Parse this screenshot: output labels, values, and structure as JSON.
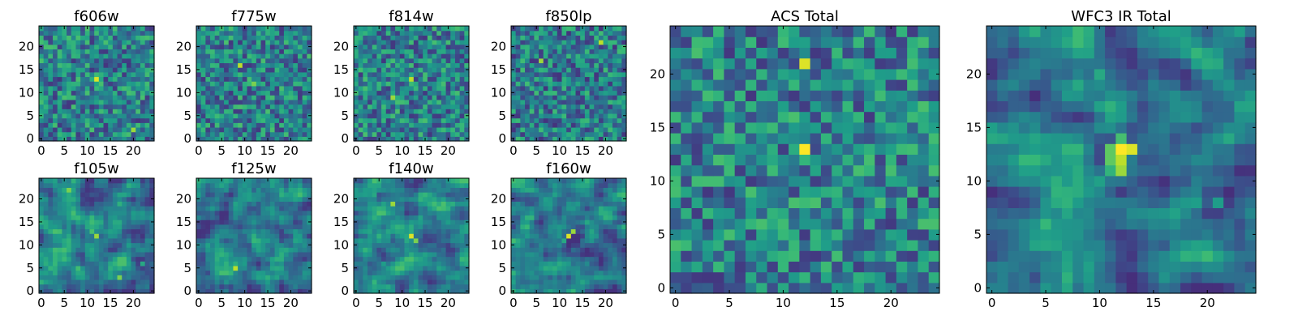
{
  "chart_data": [
    {
      "type": "heatmap",
      "title": "f606w",
      "grid_size": 25,
      "xticks": [
        0,
        5,
        10,
        15,
        20
      ],
      "yticks": [
        0,
        5,
        10,
        15,
        20
      ],
      "colormap": "viridis",
      "peaks": [
        [
          12,
          13,
          0.95
        ],
        [
          13,
          12,
          0.7
        ],
        [
          20,
          2,
          0.85
        ],
        [
          19,
          1,
          0.7
        ],
        [
          1,
          17,
          0.55
        ],
        [
          7,
          11,
          0.55
        ]
      ],
      "smooth": false,
      "bg": 0.45,
      "seed": 11
    },
    {
      "type": "heatmap",
      "title": "f775w",
      "grid_size": 25,
      "xticks": [
        0,
        5,
        10,
        15,
        20
      ],
      "yticks": [
        0,
        5,
        10,
        15,
        20
      ],
      "colormap": "viridis",
      "peaks": [
        [
          12,
          12,
          0.8
        ],
        [
          11,
          13,
          0.7
        ],
        [
          9,
          16,
          0.9
        ],
        [
          18,
          3,
          0.55
        ],
        [
          3,
          1,
          0.5
        ]
      ],
      "smooth": false,
      "bg": 0.45,
      "seed": 23
    },
    {
      "type": "heatmap",
      "title": "f814w",
      "grid_size": 25,
      "xticks": [
        0,
        5,
        10,
        15,
        20
      ],
      "yticks": [
        0,
        5,
        10,
        15,
        20
      ],
      "colormap": "viridis",
      "peaks": [
        [
          12,
          13,
          0.9
        ],
        [
          8,
          9,
          0.85
        ],
        [
          13,
          12,
          0.6
        ],
        [
          17,
          11,
          0.5
        ]
      ],
      "smooth": false,
      "bg": 0.45,
      "seed": 37
    },
    {
      "type": "heatmap",
      "title": "f850lp",
      "grid_size": 25,
      "xticks": [
        0,
        5,
        10,
        15,
        20
      ],
      "yticks": [
        0,
        5,
        10,
        15,
        20
      ],
      "colormap": "viridis",
      "peaks": [
        [
          19,
          21,
          0.9
        ],
        [
          6,
          17,
          0.85
        ],
        [
          12,
          13,
          0.55
        ],
        [
          3,
          5,
          0.5
        ]
      ],
      "smooth": false,
      "bg": 0.4,
      "seed": 41
    },
    {
      "type": "heatmap",
      "title": "f105w",
      "grid_size": 25,
      "xticks": [
        0,
        5,
        10,
        15,
        20
      ],
      "yticks": [
        0,
        5,
        10,
        15,
        20
      ],
      "colormap": "viridis",
      "peaks": [
        [
          12,
          12,
          0.85
        ],
        [
          11,
          13,
          0.7
        ],
        [
          6,
          22,
          0.8
        ],
        [
          17,
          3,
          0.8
        ],
        [
          2,
          5,
          0.65
        ],
        [
          22,
          6,
          0.6
        ],
        [
          7,
          17,
          0.5
        ]
      ],
      "smooth": true,
      "bg": 0.45,
      "seed": 53
    },
    {
      "type": "heatmap",
      "title": "f125w",
      "grid_size": 25,
      "xticks": [
        0,
        5,
        10,
        15,
        20
      ],
      "yticks": [
        0,
        5,
        10,
        15,
        20
      ],
      "colormap": "viridis",
      "peaks": [
        [
          8,
          5,
          0.9
        ],
        [
          12,
          12,
          0.55
        ],
        [
          6,
          22,
          0.5
        ],
        [
          2,
          18,
          0.45
        ]
      ],
      "smooth": true,
      "bg": 0.42,
      "seed": 67
    },
    {
      "type": "heatmap",
      "title": "f140w",
      "grid_size": 25,
      "xticks": [
        0,
        5,
        10,
        15,
        20
      ],
      "yticks": [
        0,
        5,
        10,
        15,
        20
      ],
      "colormap": "viridis",
      "peaks": [
        [
          12,
          12,
          0.95
        ],
        [
          13,
          11,
          0.8
        ],
        [
          8,
          19,
          0.85
        ],
        [
          4,
          21,
          0.6
        ],
        [
          17,
          8,
          0.5
        ],
        [
          6,
          6,
          0.55
        ]
      ],
      "smooth": true,
      "bg": 0.45,
      "seed": 71
    },
    {
      "type": "heatmap",
      "title": "f160w",
      "grid_size": 25,
      "xticks": [
        0,
        5,
        10,
        15,
        20
      ],
      "yticks": [
        0,
        5,
        10,
        15,
        20
      ],
      "colormap": "viridis",
      "peaks": [
        [
          12,
          12,
          0.95
        ],
        [
          13,
          13,
          0.85
        ],
        [
          11,
          11,
          0.6
        ],
        [
          16,
          21,
          0.5
        ],
        [
          6,
          4,
          0.45
        ]
      ],
      "smooth": true,
      "bg": 0.4,
      "seed": 83
    },
    {
      "type": "heatmap",
      "title": "ACS Total",
      "grid_size": 25,
      "xticks": [
        0,
        5,
        10,
        15,
        20
      ],
      "yticks": [
        0,
        5,
        10,
        15,
        20
      ],
      "colormap": "viridis",
      "peaks": [
        [
          12,
          21,
          0.95
        ],
        [
          12,
          13,
          1.0
        ],
        [
          4,
          12,
          0.7
        ],
        [
          18,
          20,
          0.65
        ],
        [
          19,
          19,
          0.6
        ],
        [
          5,
          17,
          0.65
        ],
        [
          7,
          9,
          0.7
        ],
        [
          24,
          12,
          0.6
        ],
        [
          22,
          4,
          0.65
        ],
        [
          22,
          17,
          0.55
        ],
        [
          16,
          12,
          0.5
        ],
        [
          15,
          11,
          0.5
        ]
      ],
      "smooth": false,
      "bg": 0.45,
      "seed": 97
    },
    {
      "type": "heatmap",
      "title": "WFC3 IR Total",
      "grid_size": 25,
      "xticks": [
        0,
        5,
        10,
        15,
        20
      ],
      "yticks": [
        0,
        5,
        10,
        15,
        20
      ],
      "colormap": "viridis",
      "peaks": [
        [
          12,
          13,
          1.0
        ],
        [
          13,
          13,
          0.95
        ],
        [
          12,
          12,
          0.9
        ],
        [
          12,
          11,
          0.85
        ],
        [
          11,
          12,
          0.75
        ],
        [
          11,
          13,
          0.75
        ],
        [
          12,
          14,
          0.7
        ],
        [
          11,
          11,
          0.65
        ],
        [
          10,
          20,
          0.6
        ],
        [
          21,
          8,
          0.55
        ]
      ],
      "smooth": true,
      "bg": 0.38,
      "seed": 101
    }
  ]
}
